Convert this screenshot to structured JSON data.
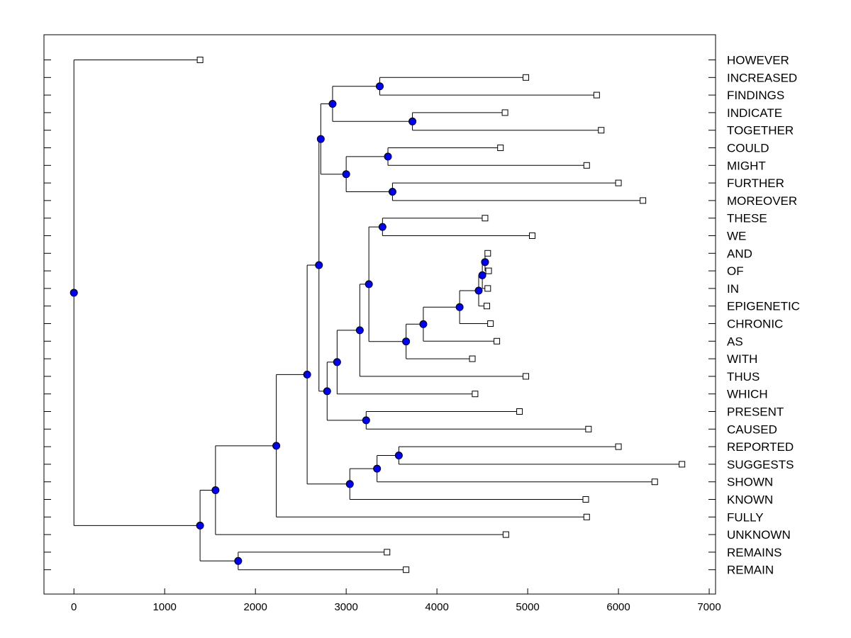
{
  "chart_data": {
    "type": "dendrogram",
    "orientation": "horizontal",
    "title": "",
    "xlabel": "",
    "ylabel": "",
    "xlim": [
      -330,
      7070
    ],
    "xticks": [
      0,
      1000,
      2000,
      3000,
      4000,
      5000,
      6000,
      7000
    ],
    "xtick_labels": [
      "0",
      "1000",
      "2000",
      "3000",
      "4000",
      "5000",
      "6000",
      "7000"
    ],
    "leaf_labels": [
      "HOWEVER",
      "INCREASED",
      "FINDINGS",
      "INDICATE",
      "TOGETHER",
      "COULD",
      "MIGHT",
      "FURTHER",
      "MOREOVER",
      "THESE",
      "WE",
      "AND",
      "OF",
      "IN",
      "EPIGENETIC",
      "CHRONIC",
      "AS",
      "WITH",
      "THUS",
      "WHICH",
      "PRESENT",
      "CAUSED",
      "REPORTED",
      "SUGGESTS",
      "SHOWN",
      "KNOWN",
      "FULLY",
      "UNKNOWN",
      "REMAINS",
      "REMAIN"
    ],
    "leaf_values": [
      1390,
      4980,
      5760,
      4750,
      5810,
      4700,
      5650,
      6000,
      6270,
      4530,
      5050,
      4560,
      4570,
      4560,
      4550,
      4590,
      4660,
      4390,
      4980,
      4420,
      4910,
      5670,
      6000,
      6700,
      6400,
      5640,
      5650,
      4760,
      3450,
      3660
    ],
    "internal_nodes": [
      {
        "id": "n1",
        "value": 3370,
        "children": [
          "L1",
          "L2"
        ]
      },
      {
        "id": "n2",
        "value": 3730,
        "children": [
          "L3",
          "L4"
        ]
      },
      {
        "id": "n3",
        "value": 2850,
        "children": [
          "n1",
          "n2"
        ]
      },
      {
        "id": "n4",
        "value": 3460,
        "children": [
          "L5",
          "L6"
        ]
      },
      {
        "id": "n5",
        "value": 3510,
        "children": [
          "L7",
          "L8"
        ]
      },
      {
        "id": "n6",
        "value": 3000,
        "children": [
          "n4",
          "n5"
        ]
      },
      {
        "id": "n7",
        "value": 2720,
        "children": [
          "n3",
          "n6"
        ]
      },
      {
        "id": "n8",
        "value": 3400,
        "children": [
          "L9",
          "L10"
        ]
      },
      {
        "id": "n9",
        "value": 4530,
        "children": [
          "L11",
          "L12"
        ]
      },
      {
        "id": "n10",
        "value": 4500,
        "children": [
          "n9",
          "L13"
        ]
      },
      {
        "id": "n11",
        "value": 4460,
        "children": [
          "n10",
          "L14"
        ]
      },
      {
        "id": "n12",
        "value": 4250,
        "children": [
          "n11",
          "L15"
        ]
      },
      {
        "id": "n13",
        "value": 3850,
        "children": [
          "n12",
          "L16"
        ]
      },
      {
        "id": "n14",
        "value": 3660,
        "children": [
          "n13",
          "L17"
        ]
      },
      {
        "id": "n15",
        "value": 3250,
        "children": [
          "n8",
          "n14"
        ]
      },
      {
        "id": "n16",
        "value": 3150,
        "children": [
          "n15",
          "L18"
        ]
      },
      {
        "id": "n17",
        "value": 2900,
        "children": [
          "n16",
          "L19"
        ]
      },
      {
        "id": "n18",
        "value": 3220,
        "children": [
          "L20",
          "L21"
        ]
      },
      {
        "id": "n19",
        "value": 2790,
        "children": [
          "n17",
          "n18"
        ]
      },
      {
        "id": "n20",
        "value": 2700,
        "children": [
          "n7",
          "n19"
        ]
      },
      {
        "id": "n21",
        "value": 3580,
        "children": [
          "L22",
          "L23"
        ]
      },
      {
        "id": "n22",
        "value": 3340,
        "children": [
          "n21",
          "L24"
        ]
      },
      {
        "id": "n23",
        "value": 3040,
        "children": [
          "n22",
          "L25"
        ]
      },
      {
        "id": "n24",
        "value": 2570,
        "children": [
          "n20",
          "n23"
        ]
      },
      {
        "id": "n25",
        "value": 2230,
        "children": [
          "n24",
          "L26"
        ]
      },
      {
        "id": "n26",
        "value": 1560,
        "children": [
          "n25",
          "L27"
        ]
      },
      {
        "id": "n27",
        "value": 1810,
        "children": [
          "L28",
          "L29"
        ]
      },
      {
        "id": "n28",
        "value": 1390,
        "children": [
          "n26",
          "n27"
        ]
      },
      {
        "id": "n29",
        "value": 0,
        "children": [
          "L0",
          "n28"
        ]
      }
    ],
    "colors": {
      "internal_node": "#0000ff",
      "leaf_node": "#ffffff",
      "line": "#000000"
    }
  }
}
